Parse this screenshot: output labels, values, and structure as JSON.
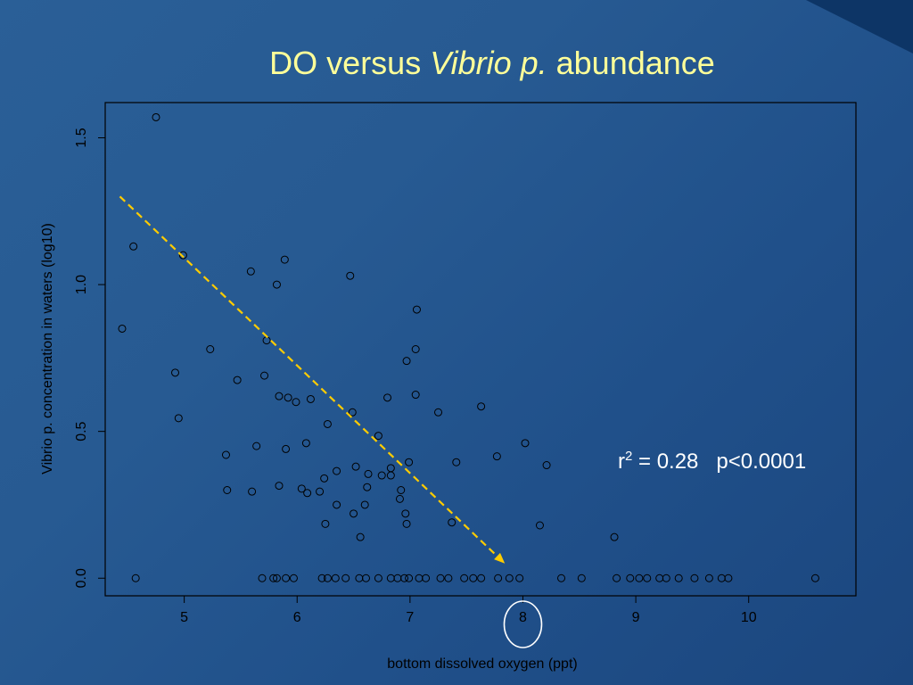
{
  "slide": {
    "title_plain": "DO versus ",
    "title_italic": "Vibrio p.",
    "title_tail": " abundance"
  },
  "stats": {
    "r_label": "r",
    "r_exponent": "2",
    "r_value": " = 0.28",
    "p_value": "p<0.0001"
  },
  "colors": {
    "background": "#275a92",
    "title": "#ffff99",
    "axis": "#000000",
    "trend_arrow": "#ffcc00",
    "highlight_circle": "#ffffff",
    "annotation_text": "#ffffff"
  },
  "chart_data": {
    "type": "scatter",
    "xlabel": "bottom dissolved oxygen (ppt)",
    "ylabel": "Vibrio p. concentration in waters (log10)",
    "xlim": [
      4.3,
      10.95
    ],
    "ylim": [
      -0.06,
      1.62
    ],
    "xticks": [
      5,
      6,
      7,
      8,
      9,
      10
    ],
    "yticks": [
      0.0,
      0.5,
      1.0,
      1.5
    ],
    "ytick_labels": [
      "0.0",
      "0.5",
      "1.0",
      "1.5"
    ],
    "grid": false,
    "marker": "open-circle",
    "trend_arrow": {
      "from": [
        4.43,
        1.3
      ],
      "to": [
        7.84,
        0.05
      ],
      "style": "dashed"
    },
    "highlight_x": 8,
    "points": [
      [
        4.75,
        1.57
      ],
      [
        4.55,
        1.13
      ],
      [
        4.45,
        0.85
      ],
      [
        4.99,
        1.1
      ],
      [
        4.92,
        0.7
      ],
      [
        4.95,
        0.545
      ],
      [
        4.57,
        0.0
      ],
      [
        5.23,
        0.78
      ],
      [
        5.37,
        0.42
      ],
      [
        5.47,
        0.675
      ],
      [
        5.59,
        1.045
      ],
      [
        5.38,
        0.3
      ],
      [
        5.6,
        0.295
      ],
      [
        5.64,
        0.45
      ],
      [
        5.71,
        0.69
      ],
      [
        5.73,
        0.81
      ],
      [
        5.82,
        1.0
      ],
      [
        5.89,
        1.085
      ],
      [
        5.84,
        0.62
      ],
      [
        5.92,
        0.615
      ],
      [
        5.99,
        0.6
      ],
      [
        6.12,
        0.61
      ],
      [
        5.9,
        0.44
      ],
      [
        5.84,
        0.315
      ],
      [
        6.04,
        0.305
      ],
      [
        6.09,
        0.29
      ],
      [
        6.08,
        0.46
      ],
      [
        6.2,
        0.295
      ],
      [
        6.24,
        0.34
      ],
      [
        6.27,
        0.525
      ],
      [
        6.25,
        0.185
      ],
      [
        6.35,
        0.365
      ],
      [
        6.35,
        0.25
      ],
      [
        6.47,
        1.03
      ],
      [
        6.49,
        0.565
      ],
      [
        6.52,
        0.38
      ],
      [
        6.5,
        0.22
      ],
      [
        6.6,
        0.25
      ],
      [
        6.56,
        0.14
      ],
      [
        6.63,
        0.355
      ],
      [
        6.62,
        0.31
      ],
      [
        6.72,
        0.485
      ],
      [
        6.75,
        0.35
      ],
      [
        6.8,
        0.615
      ],
      [
        6.83,
        0.375
      ],
      [
        6.83,
        0.35
      ],
      [
        6.91,
        0.27
      ],
      [
        6.92,
        0.3
      ],
      [
        6.96,
        0.22
      ],
      [
        6.97,
        0.185
      ],
      [
        6.97,
        0.74
      ],
      [
        6.99,
        0.395
      ],
      [
        7.05,
        0.78
      ],
      [
        7.06,
        0.915
      ],
      [
        7.05,
        0.625
      ],
      [
        7.25,
        0.565
      ],
      [
        7.37,
        0.19
      ],
      [
        7.41,
        0.395
      ],
      [
        7.63,
        0.585
      ],
      [
        7.77,
        0.415
      ],
      [
        8.02,
        0.46
      ],
      [
        8.15,
        0.18
      ],
      [
        8.21,
        0.385
      ],
      [
        8.81,
        0.14
      ],
      [
        5.69,
        0.0
      ],
      [
        5.79,
        0.0
      ],
      [
        5.82,
        0.0
      ],
      [
        5.9,
        0.0
      ],
      [
        5.97,
        0.0
      ],
      [
        6.22,
        0.0
      ],
      [
        6.27,
        0.0
      ],
      [
        6.34,
        0.0
      ],
      [
        6.43,
        0.0
      ],
      [
        6.55,
        0.0
      ],
      [
        6.61,
        0.0
      ],
      [
        6.72,
        0.0
      ],
      [
        6.83,
        0.0
      ],
      [
        6.89,
        0.0
      ],
      [
        6.95,
        0.0
      ],
      [
        6.99,
        0.0
      ],
      [
        7.08,
        0.0
      ],
      [
        7.14,
        0.0
      ],
      [
        7.27,
        0.0
      ],
      [
        7.34,
        0.0
      ],
      [
        7.48,
        0.0
      ],
      [
        7.56,
        0.0
      ],
      [
        7.63,
        0.0
      ],
      [
        7.78,
        0.0
      ],
      [
        7.88,
        0.0
      ],
      [
        7.97,
        0.0
      ],
      [
        8.34,
        0.0
      ],
      [
        8.52,
        0.0
      ],
      [
        8.83,
        0.0
      ],
      [
        8.95,
        0.0
      ],
      [
        9.03,
        0.0
      ],
      [
        9.1,
        0.0
      ],
      [
        9.21,
        0.0
      ],
      [
        9.27,
        0.0
      ],
      [
        9.38,
        0.0
      ],
      [
        9.52,
        0.0
      ],
      [
        9.65,
        0.0
      ],
      [
        9.76,
        0.0
      ],
      [
        9.82,
        0.0
      ],
      [
        10.59,
        0.0
      ]
    ]
  }
}
